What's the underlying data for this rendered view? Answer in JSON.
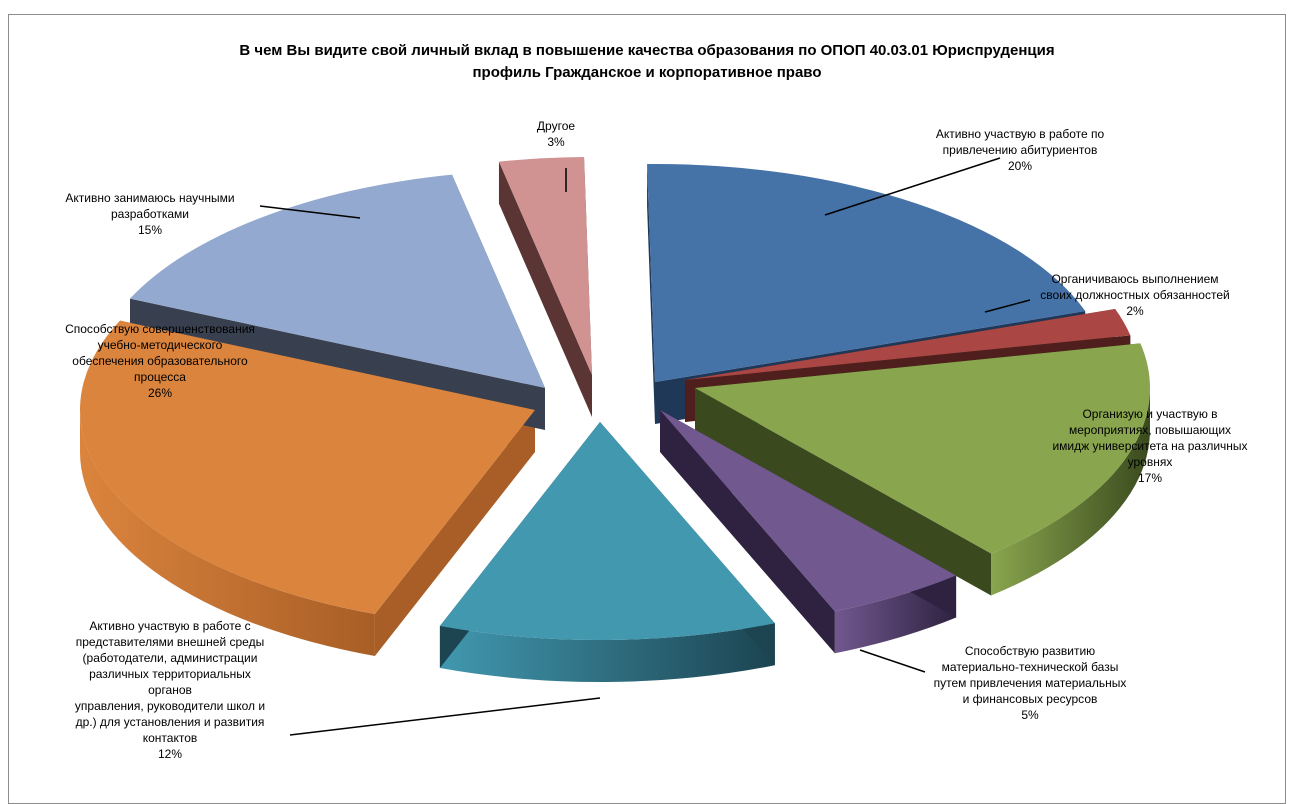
{
  "chart_data": {
    "type": "pie",
    "title_lines": [
      "В чем Вы видите свой личный вклад в повышение качества образования по ОПОП 40.03.01 Юриспруденция",
      "профиль Гражданское и корпоративное право"
    ],
    "slices": [
      {
        "label_lines": [
          "Активно участвую в работе по",
          "привлечению абитуриентов"
        ],
        "pct": "20%",
        "value": 20,
        "color": "#4572A7",
        "side": "#1f3858"
      },
      {
        "label_lines": [
          "Органичиваюсь выполнением",
          "своих должностных обязанностей"
        ],
        "pct": "2%",
        "value": 2,
        "color": "#AA4643",
        "side": "#4f1f1d"
      },
      {
        "label_lines": [
          "Организую и участвую в",
          "мероприятиях, повышающих",
          "имидж университета на различных",
          "уровнях"
        ],
        "pct": "17%",
        "value": 17,
        "color": "#89A54E",
        "side": "#3a4a1e"
      },
      {
        "label_lines": [
          "Способствую развитию",
          "материально-технической базы",
          "путем привлечения материальных",
          "и финансовых ресурсов"
        ],
        "pct": "5%",
        "value": 5,
        "color": "#71588F",
        "side": "#2e2240"
      },
      {
        "label_lines": [
          "Активно участвую в работе с",
          "представителями внешней среды",
          "(работодатели, администрации",
          "различных территориальных",
          "органов",
          "управления, руководители школ и",
          "др.) для установления и развития",
          "контактов"
        ],
        "pct": "12%",
        "value": 12,
        "color": "#4198AF",
        "side": "#1c4451"
      },
      {
        "label_lines": [
          "Способствую совершенствования",
          "учебно-методического",
          "обеспечения образовательного",
          "процесса"
        ],
        "pct": "26%",
        "value": 26,
        "color": "#DB843D",
        "side": "#a85e26"
      },
      {
        "label_lines": [
          "Активно занимаюсь научными",
          "разработками"
        ],
        "pct": "15%",
        "value": 15,
        "color": "#93A9CF",
        "side": "#38404f"
      },
      {
        "label_lines": [
          "Другое"
        ],
        "pct": "3%",
        "value": 3,
        "color": "#D19392",
        "side": "#5a3534"
      }
    ]
  }
}
